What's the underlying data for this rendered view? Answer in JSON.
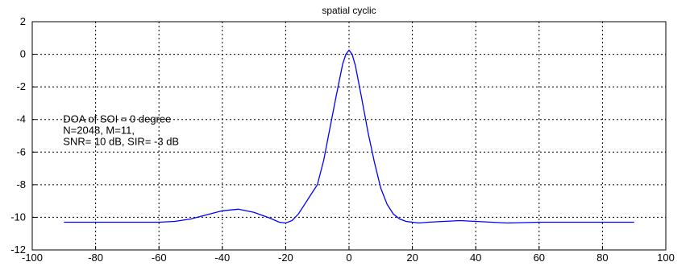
{
  "chart_data": {
    "type": "line",
    "title": "spatial cyclic",
    "xlabel": "",
    "ylabel": "",
    "xlim": [
      -100,
      100
    ],
    "ylim": [
      -12,
      2
    ],
    "xticks": [
      -100,
      -80,
      -60,
      -40,
      -20,
      0,
      20,
      40,
      60,
      80,
      100
    ],
    "yticks": [
      2,
      0,
      -2,
      -4,
      -6,
      -8,
      -10,
      -12
    ],
    "grid": true,
    "annotation": {
      "lines": [
        "DOA of SOI = 0 degree",
        "N=2048,  M=11,",
        "SNR= 10 dB,  SIR= -3 dB"
      ],
      "x": -90,
      "y": -4
    },
    "series": [
      {
        "color": "#0000ff",
        "x": [
          -90,
          -80,
          -70,
          -60,
          -55,
          -50,
          -45,
          -40,
          -35,
          -30,
          -25,
          -22,
          -20,
          -18,
          -16,
          -14,
          -12,
          -10,
          -8,
          -6,
          -4,
          -2,
          -1,
          0,
          1,
          2,
          4,
          6,
          8,
          10,
          12,
          14,
          16,
          18,
          20,
          22,
          25,
          30,
          35,
          40,
          45,
          50,
          60,
          70,
          80,
          90
        ],
        "y": [
          -10.3,
          -10.3,
          -10.3,
          -10.3,
          -10.25,
          -10.1,
          -9.85,
          -9.6,
          -9.5,
          -9.7,
          -10.05,
          -10.3,
          -10.35,
          -10.2,
          -9.8,
          -9.2,
          -8.6,
          -8.0,
          -6.5,
          -4.5,
          -2.5,
          -0.6,
          0.0,
          0.25,
          0.0,
          -0.7,
          -2.7,
          -4.8,
          -6.6,
          -8.2,
          -9.2,
          -9.8,
          -10.1,
          -10.25,
          -10.3,
          -10.35,
          -10.3,
          -10.25,
          -10.2,
          -10.25,
          -10.3,
          -10.35,
          -10.3,
          -10.3,
          -10.3,
          -10.3
        ]
      }
    ]
  }
}
